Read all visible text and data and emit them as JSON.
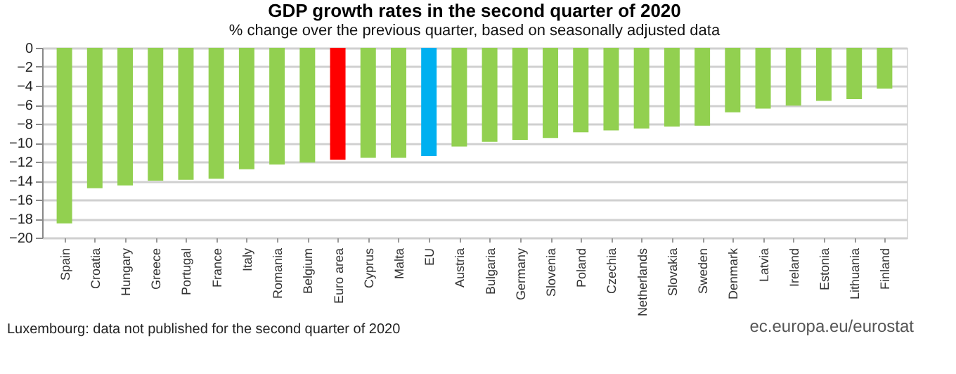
{
  "chart_data": {
    "type": "bar",
    "title": "GDP growth rates in the second quarter of 2020",
    "subtitle": "% change over the previous quarter, based on seasonally adjusted data",
    "categories": [
      "Spain",
      "Croatia",
      "Hungary",
      "Greece",
      "Portugal",
      "France",
      "Italy",
      "Romania",
      "Belgium",
      "Euro area",
      "Cyprus",
      "Malta",
      "EU",
      "Austria",
      "Bulgaria",
      "Germany",
      "Slovenia",
      "Poland",
      "Czechia",
      "Netherlands",
      "Slovakia",
      "Sweden",
      "Denmark",
      "Latvia",
      "Ireland",
      "Estonia",
      "Lithuania",
      "Finland"
    ],
    "values": [
      -18.5,
      -14.8,
      -14.5,
      -14.0,
      -13.9,
      -13.8,
      -12.8,
      -12.3,
      -12.1,
      -11.8,
      -11.6,
      -11.6,
      -11.4,
      -10.4,
      -9.9,
      -9.7,
      -9.5,
      -8.9,
      -8.7,
      -8.5,
      -8.3,
      -8.2,
      -6.8,
      -6.4,
      -6.1,
      -5.6,
      -5.4,
      -4.3
    ],
    "colors": [
      "#92d050",
      "#92d050",
      "#92d050",
      "#92d050",
      "#92d050",
      "#92d050",
      "#92d050",
      "#92d050",
      "#92d050",
      "#ff0000",
      "#92d050",
      "#92d050",
      "#00b0f0",
      "#92d050",
      "#92d050",
      "#92d050",
      "#92d050",
      "#92d050",
      "#92d050",
      "#92d050",
      "#92d050",
      "#92d050",
      "#92d050",
      "#92d050",
      "#92d050",
      "#92d050",
      "#92d050",
      "#92d050"
    ],
    "ylim": [
      -20,
      0
    ],
    "yticks": [
      -20,
      -18,
      -16,
      -14,
      -12,
      -10,
      -8,
      -6,
      -4,
      -2,
      0
    ],
    "grid": "y",
    "annotations": [
      "Luxembourg: data not published for the second quarter of 2020",
      "ec.europa.eu/eurostat"
    ]
  }
}
